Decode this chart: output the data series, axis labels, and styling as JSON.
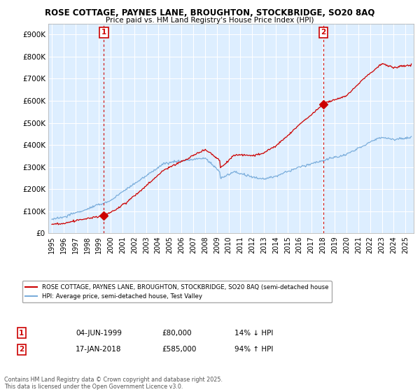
{
  "title1": "ROSE COTTAGE, PAYNES LANE, BROUGHTON, STOCKBRIDGE, SO20 8AQ",
  "title2": "Price paid vs. HM Land Registry's House Price Index (HPI)",
  "ylabel_ticks": [
    "£0",
    "£100K",
    "£200K",
    "£300K",
    "£400K",
    "£500K",
    "£600K",
    "£700K",
    "£800K",
    "£900K"
  ],
  "ytick_values": [
    0,
    100000,
    200000,
    300000,
    400000,
    500000,
    600000,
    700000,
    800000,
    900000
  ],
  "ylim": [
    0,
    950000
  ],
  "xlim_start": 1994.7,
  "xlim_end": 2025.7,
  "sale1_date": 1999.42,
  "sale1_price": 80000,
  "sale1_label": "1",
  "sale1_hpi_pct": "14% ↓ HPI",
  "sale1_date_str": "04-JUN-1999",
  "sale2_date": 2018.05,
  "sale2_price": 585000,
  "sale2_label": "2",
  "sale2_hpi_pct": "94% ↑ HPI",
  "sale2_date_str": "17-JAN-2018",
  "legend_line1": "ROSE COTTAGE, PAYNES LANE, BROUGHTON, STOCKBRIDGE, SO20 8AQ (semi-detached house",
  "legend_line2": "HPI: Average price, semi-detached house, Test Valley",
  "footnote": "Contains HM Land Registry data © Crown copyright and database right 2025.\nThis data is licensed under the Open Government Licence v3.0.",
  "line_color_red": "#cc0000",
  "line_color_blue": "#7aaddb",
  "plot_bg_color": "#ddeeff",
  "bg_color": "#ffffff",
  "grid_color": "#ffffff",
  "sale_marker_color": "#cc0000",
  "marker_box_color": "#cc0000"
}
